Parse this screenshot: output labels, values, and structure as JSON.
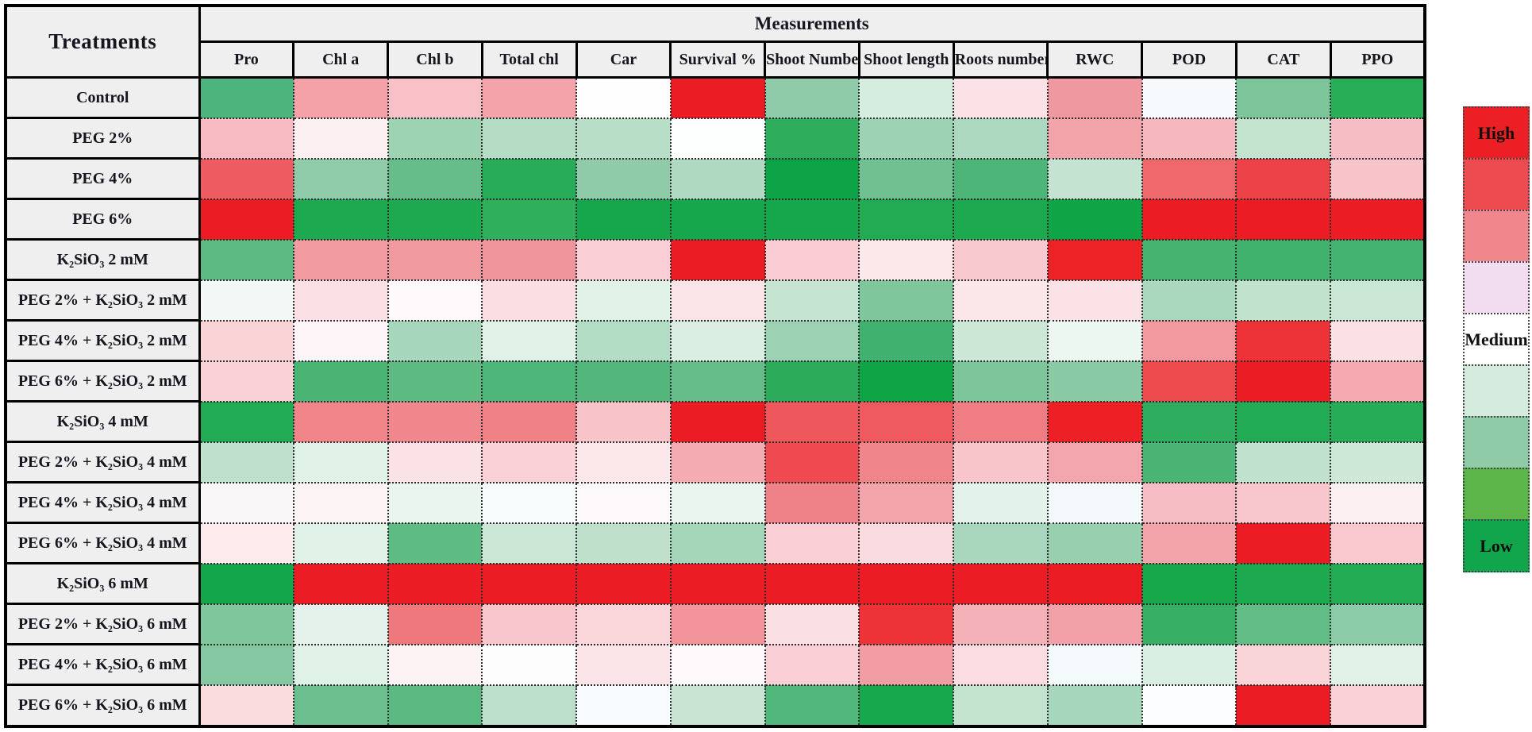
{
  "table": {
    "row_header": "Treatments",
    "col_group_header": "Measurements"
  },
  "legend": {
    "bins": [
      {
        "label": "High",
        "color": "#EC2024"
      },
      {
        "label": "",
        "color": "#EE4B50"
      },
      {
        "label": "",
        "color": "#F0878D"
      },
      {
        "label": "",
        "color": "#F2DCEF"
      },
      {
        "label": "Medium",
        "color": "#FFFFFF"
      },
      {
        "label": "",
        "color": "#D5EBDE"
      },
      {
        "label": "",
        "color": "#90CBA8"
      },
      {
        "label": "",
        "color": "#5CB64A"
      },
      {
        "label": "Low",
        "color": "#11A64C"
      }
    ]
  },
  "colors": {
    "header_bg": "#F0EFF0",
    "solid_border": "#000000",
    "dotted_grid": "#2B2B2B",
    "page_bg": "#FFFFFF",
    "high": "#EC2024",
    "medium": "#FFFFFF",
    "low": "#11A64C"
  },
  "chart_data": {
    "type": "heatmap",
    "title": "",
    "xlabel": "Measurements",
    "ylabel": "Treatments",
    "legend_position": "right",
    "scale_labels": [
      "High",
      "Medium",
      "Low"
    ],
    "x_categories": [
      "Pro",
      "Chl a",
      "Chl b",
      "Total chl",
      "Car",
      "Survival %",
      "Shoot Number",
      "Shoot length",
      "Roots number",
      "RWC",
      "POD",
      "CAT",
      "PPO"
    ],
    "y_categories": [
      "Control",
      "PEG 2%",
      "PEG 4%",
      "PEG 6%",
      "K₂SiO₃ 2 mM",
      "PEG 2% + K₂SiO₃ 2 mM",
      "PEG 4% + K₂SiO₃ 2 mM",
      "PEG 6% + K₂SiO₃ 2 mM",
      "K₂SiO₃ 4 mM",
      "PEG 2% + K₂SiO₃ 4 mM",
      "PEG 4% + K₂SiO₃ 4 mM",
      "PEG 6% + K₂SiO₃ 4 mM",
      "K₂SiO₃ 6 mM",
      "PEG 2% + K₂SiO₃ 6 mM",
      "PEG 4% + K₂SiO₃ 6 mM",
      "PEG 6% + K₂SiO₃ 6 mM"
    ],
    "cell_colors": [
      [
        "#4CB57E",
        "#F4A1A7",
        "#F8C0C7",
        "#F4A3AA",
        "#FEFEFE",
        "#EC1C24",
        "#8FCBA8",
        "#D5EDDE",
        "#FBE2E6",
        "#F0989F",
        "#F7FAFD",
        "#7EC49B",
        "#27AE57"
      ],
      [
        "#F7BAC2",
        "#FDF0F3",
        "#9DD2B3",
        "#B5DCC5",
        "#B8DEC7",
        "#FDFEFE",
        "#2EAD5C",
        "#9ED2B5",
        "#ABD8BE",
        "#F3A4AB",
        "#F6B7BF",
        "#C4E3CF",
        "#F7BDC5"
      ],
      [
        "#EE5B60",
        "#90CCA9",
        "#67BD8A",
        "#28AC5A",
        "#8FCBA8",
        "#AFD9C0",
        "#0CA446",
        "#70C091",
        "#4EB578",
        "#C5E3D1",
        "#EE686C",
        "#ED4247",
        "#F8C3C9"
      ],
      [
        "#EC1C24",
        "#1CA950",
        "#1CA950",
        "#2FAE5C",
        "#16A74C",
        "#16A74C",
        "#16A74C",
        "#22AB52",
        "#1CA950",
        "#0FA546",
        "#EC1C24",
        "#EC1C24",
        "#EC1C24"
      ],
      [
        "#5CBA83",
        "#F29CA2",
        "#F0999F",
        "#F0959B",
        "#F9CED4",
        "#EC1C24",
        "#F9CDD3",
        "#FCE8EB",
        "#F8C9CF",
        "#EC2227",
        "#46B371",
        "#41B16E",
        "#44B270"
      ],
      [
        "#F2F8F5",
        "#FBE1E5",
        "#FEFAFB",
        "#FADEE2",
        "#E0F1E8",
        "#FBE4E7",
        "#C5E4D1",
        "#7FC69D",
        "#FBE6E9",
        "#FBE2E6",
        "#AAD8BE",
        "#C1E2CD",
        "#CAE6D5"
      ],
      [
        "#FAD3D7",
        "#FDF5F7",
        "#A6D7BC",
        "#E0F1E8",
        "#B3DCC4",
        "#D9EEE1",
        "#9CD2B3",
        "#41B170",
        "#CCE7D6",
        "#EDF7F1",
        "#F2999F",
        "#ED3338",
        "#FBE0E4"
      ],
      [
        "#FAD1D6",
        "#49B473",
        "#5DBB82",
        "#4EB678",
        "#53B77B",
        "#67BD8A",
        "#2CAC5A",
        "#0FA544",
        "#7DC59B",
        "#89C9A4",
        "#EE4B4F",
        "#EC1C24",
        "#F5AAB1"
      ],
      [
        "#22AB55",
        "#F08489",
        "#F0878D",
        "#F08187",
        "#F8C4CA",
        "#EC1C24",
        "#EE585D",
        "#EE5A5F",
        "#F07D83",
        "#EC2025",
        "#2FAD5E",
        "#22AB55",
        "#26AC57"
      ],
      [
        "#BEE0CC",
        "#E0F1E8",
        "#FBE2E6",
        "#F9D1D6",
        "#FCE7EA",
        "#F5ABB2",
        "#EE4A4F",
        "#F0868C",
        "#F8C5CB",
        "#F3A6AD",
        "#49B474",
        "#C0E1CD",
        "#CEE8D8"
      ],
      [
        "#FAF7F9",
        "#FDF4F6",
        "#EBF5F0",
        "#F8FBFC",
        "#FDF9FA",
        "#E9F4EE",
        "#EF8288",
        "#F4A5AC",
        "#E3F2EA",
        "#F4F9FB",
        "#F7BDC4",
        "#F8C7CD",
        "#FDF0F3"
      ],
      [
        "#FCEAED",
        "#E0F1E8",
        "#5FBB84",
        "#CAE6D5",
        "#BFE1CC",
        "#A3D5B9",
        "#F9CFD5",
        "#FADCE0",
        "#A8D7BD",
        "#98D0AF",
        "#F3A3AA",
        "#EC1C24",
        "#F8C8CE"
      ],
      [
        "#13A64A",
        "#EC1C24",
        "#EC1C24",
        "#EC1C24",
        "#EC1C24",
        "#EC1C24",
        "#EC1C24",
        "#EC1C24",
        "#EC1C24",
        "#EC1C24",
        "#17A84C",
        "#1CA94F",
        "#22AB52"
      ],
      [
        "#7FC69D",
        "#E4F2EB",
        "#EF787D",
        "#F8C6CC",
        "#FAD5D9",
        "#F2949A",
        "#FBE0E3",
        "#ED3338",
        "#F5B1B8",
        "#F3A1A8",
        "#36AF64",
        "#62BC86",
        "#8CCBA7"
      ],
      [
        "#84C7A0",
        "#E0F1E8",
        "#FDF3F5",
        "#FEFDFE",
        "#FBE4E7",
        "#FDF8F9",
        "#F9CFD5",
        "#F29DA3",
        "#FBDDE1",
        "#F5FAFC",
        "#DAEFE3",
        "#F9D4D9",
        "#E0F1E8"
      ],
      [
        "#FADCDF",
        "#6CBF8E",
        "#59B980",
        "#BCDFCB",
        "#F8FBFD",
        "#C7E5D2",
        "#51B77A",
        "#17A84D",
        "#C3E3CF",
        "#A6D6BB",
        "#FBFDFE",
        "#EC1C24",
        "#F9D1D6"
      ]
    ],
    "cell_levels_1high_to_9low": [
      [
        8,
        3,
        4,
        3,
        5,
        1,
        7,
        6,
        4,
        3,
        5,
        7,
        9
      ],
      [
        4,
        5,
        7,
        7,
        7,
        5,
        8,
        7,
        7,
        3,
        4,
        6,
        4
      ],
      [
        2,
        7,
        8,
        9,
        7,
        7,
        9,
        8,
        8,
        6,
        2,
        2,
        4
      ],
      [
        1,
        9,
        9,
        9,
        9,
        9,
        9,
        9,
        9,
        9,
        1,
        1,
        1
      ],
      [
        8,
        3,
        3,
        3,
        4,
        1,
        4,
        4,
        4,
        1,
        8,
        8,
        8
      ],
      [
        5,
        4,
        5,
        4,
        6,
        4,
        6,
        7,
        4,
        4,
        7,
        6,
        6
      ],
      [
        4,
        5,
        7,
        6,
        7,
        6,
        7,
        8,
        6,
        5,
        3,
        1,
        4
      ],
      [
        4,
        8,
        8,
        8,
        8,
        8,
        9,
        9,
        7,
        7,
        2,
        1,
        3
      ],
      [
        9,
        2,
        2,
        2,
        4,
        1,
        2,
        2,
        2,
        1,
        9,
        9,
        9
      ],
      [
        6,
        6,
        4,
        4,
        4,
        3,
        2,
        2,
        4,
        3,
        8,
        6,
        6
      ],
      [
        5,
        5,
        5,
        5,
        5,
        6,
        2,
        3,
        6,
        5,
        4,
        4,
        5
      ],
      [
        5,
        6,
        8,
        6,
        6,
        7,
        4,
        4,
        7,
        7,
        3,
        1,
        4
      ],
      [
        9,
        1,
        1,
        1,
        1,
        1,
        1,
        1,
        1,
        1,
        9,
        9,
        9
      ],
      [
        7,
        6,
        2,
        4,
        4,
        3,
        4,
        1,
        3,
        3,
        8,
        8,
        7
      ],
      [
        7,
        6,
        5,
        5,
        4,
        5,
        4,
        3,
        4,
        5,
        6,
        4,
        6
      ],
      [
        4,
        8,
        8,
        7,
        5,
        6,
        8,
        9,
        6,
        7,
        5,
        1,
        4
      ]
    ]
  }
}
